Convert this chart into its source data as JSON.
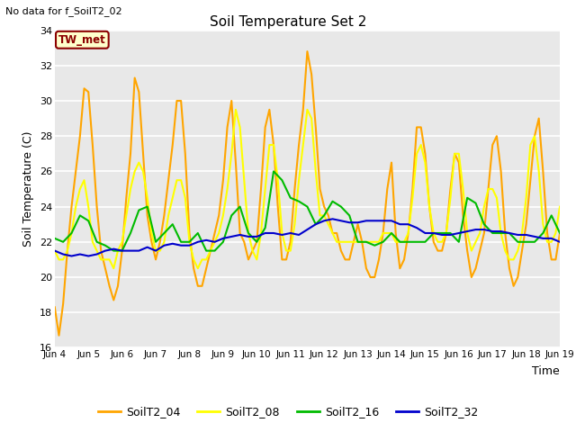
{
  "title": "Soil Temperature Set 2",
  "no_data_text": "No data for f_SoilT2_02",
  "xlabel": "Time",
  "ylabel": "Soil Temperature (C)",
  "ylim": [
    16,
    34
  ],
  "xlim": [
    0,
    15
  ],
  "bg_color": "#e8e8e8",
  "grid_color": "#ffffff",
  "legend_labels": [
    "SoilT2_04",
    "SoilT2_08",
    "SoilT2_16",
    "SoilT2_32"
  ],
  "legend_colors": [
    "#FFA500",
    "#FFFF00",
    "#00BB00",
    "#0000CC"
  ],
  "tw_met_label": "TW_met",
  "tw_met_bg": "#FFFFCC",
  "tw_met_border": "#8B0000",
  "tw_met_text_color": "#8B0000",
  "xtick_labels": [
    "Jun 4",
    "Jun 5",
    "Jun 6",
    "Jun 7",
    "Jun 8",
    "Jun 9",
    "Jun 10",
    "Jun 11",
    "Jun 12",
    "Jun 13",
    "Jun 14",
    "Jun 15",
    "Jun 16",
    "Jun 17",
    "Jun 18",
    "Jun 19"
  ],
  "xtick_positions": [
    0,
    1,
    2,
    3,
    4,
    5,
    6,
    7,
    8,
    9,
    10,
    11,
    12,
    13,
    14,
    15
  ],
  "ytick_positions": [
    16,
    18,
    20,
    22,
    24,
    26,
    28,
    30,
    32,
    34
  ],
  "soilT2_04_x": [
    0.0,
    0.125,
    0.25,
    0.375,
    0.5,
    0.625,
    0.75,
    0.875,
    1.0,
    1.125,
    1.25,
    1.375,
    1.5,
    1.625,
    1.75,
    1.875,
    2.0,
    2.125,
    2.25,
    2.375,
    2.5,
    2.625,
    2.75,
    2.875,
    3.0,
    3.125,
    3.25,
    3.375,
    3.5,
    3.625,
    3.75,
    3.875,
    4.0,
    4.125,
    4.25,
    4.375,
    4.5,
    4.625,
    4.75,
    4.875,
    5.0,
    5.125,
    5.25,
    5.375,
    5.5,
    5.625,
    5.75,
    5.875,
    6.0,
    6.125,
    6.25,
    6.375,
    6.5,
    6.625,
    6.75,
    6.875,
    7.0,
    7.125,
    7.25,
    7.375,
    7.5,
    7.625,
    7.75,
    7.875,
    8.0,
    8.125,
    8.25,
    8.375,
    8.5,
    8.625,
    8.75,
    8.875,
    9.0,
    9.125,
    9.25,
    9.375,
    9.5,
    9.625,
    9.75,
    9.875,
    10.0,
    10.125,
    10.25,
    10.375,
    10.5,
    10.625,
    10.75,
    10.875,
    11.0,
    11.125,
    11.25,
    11.375,
    11.5,
    11.625,
    11.75,
    11.875,
    12.0,
    12.125,
    12.25,
    12.375,
    12.5,
    12.625,
    12.75,
    12.875,
    13.0,
    13.125,
    13.25,
    13.375,
    13.5,
    13.625,
    13.75,
    13.875,
    14.0,
    14.125,
    14.25,
    14.375,
    14.5,
    14.625,
    14.75,
    14.875,
    15.0
  ],
  "soilT2_04_y": [
    18.3,
    16.7,
    18.5,
    21.5,
    24.0,
    26.0,
    28.0,
    30.7,
    30.5,
    27.5,
    24.0,
    21.5,
    20.5,
    19.5,
    18.7,
    19.5,
    21.5,
    24.5,
    27.0,
    31.3,
    30.5,
    27.0,
    23.5,
    22.0,
    21.0,
    22.0,
    23.5,
    25.5,
    27.5,
    30.0,
    30.0,
    27.0,
    22.5,
    20.5,
    19.5,
    19.5,
    20.5,
    21.5,
    22.5,
    23.5,
    25.5,
    28.5,
    30.0,
    26.5,
    22.5,
    22.0,
    21.0,
    21.5,
    22.0,
    25.0,
    28.5,
    29.5,
    27.5,
    24.0,
    21.0,
    21.0,
    22.0,
    25.0,
    27.5,
    29.5,
    32.8,
    31.5,
    28.5,
    25.0,
    24.0,
    23.5,
    22.5,
    22.5,
    21.5,
    21.0,
    21.0,
    22.0,
    23.0,
    22.0,
    20.5,
    20.0,
    20.0,
    21.0,
    22.5,
    25.0,
    26.5,
    22.5,
    20.5,
    21.0,
    22.5,
    25.0,
    28.5,
    28.5,
    27.0,
    24.0,
    22.0,
    21.5,
    21.5,
    22.5,
    25.0,
    27.0,
    26.5,
    23.5,
    21.5,
    20.0,
    20.5,
    21.5,
    22.5,
    25.0,
    27.5,
    28.0,
    26.0,
    22.5,
    20.5,
    19.5,
    20.0,
    21.5,
    23.0,
    25.5,
    28.0,
    29.0,
    26.0,
    22.5,
    21.0,
    21.0,
    22.5
  ],
  "soilT2_08_x": [
    0.0,
    0.125,
    0.25,
    0.375,
    0.5,
    0.625,
    0.75,
    0.875,
    1.0,
    1.125,
    1.25,
    1.375,
    1.5,
    1.625,
    1.75,
    1.875,
    2.0,
    2.125,
    2.25,
    2.375,
    2.5,
    2.625,
    2.75,
    2.875,
    3.0,
    3.125,
    3.25,
    3.375,
    3.5,
    3.625,
    3.75,
    3.875,
    4.0,
    4.125,
    4.25,
    4.375,
    4.5,
    4.625,
    4.75,
    4.875,
    5.0,
    5.125,
    5.25,
    5.375,
    5.5,
    5.625,
    5.75,
    5.875,
    6.0,
    6.125,
    6.25,
    6.375,
    6.5,
    6.625,
    6.75,
    6.875,
    7.0,
    7.125,
    7.25,
    7.375,
    7.5,
    7.625,
    7.75,
    7.875,
    8.0,
    8.125,
    8.25,
    8.375,
    8.5,
    8.625,
    8.75,
    8.875,
    9.0,
    9.125,
    9.25,
    9.375,
    9.5,
    9.625,
    9.75,
    9.875,
    10.0,
    10.125,
    10.25,
    10.375,
    10.5,
    10.625,
    10.75,
    10.875,
    11.0,
    11.125,
    11.25,
    11.375,
    11.5,
    11.625,
    11.75,
    11.875,
    12.0,
    12.125,
    12.25,
    12.375,
    12.5,
    12.625,
    12.75,
    12.875,
    13.0,
    13.125,
    13.25,
    13.375,
    13.5,
    13.625,
    13.75,
    13.875,
    14.0,
    14.125,
    14.25,
    14.375,
    14.5,
    14.625,
    14.75,
    14.875,
    15.0
  ],
  "soilT2_08_y": [
    21.5,
    21.0,
    21.0,
    21.5,
    22.5,
    24.0,
    25.0,
    25.5,
    24.0,
    22.0,
    21.5,
    21.0,
    21.0,
    21.0,
    20.5,
    21.5,
    22.0,
    23.5,
    25.0,
    26.0,
    26.5,
    26.0,
    24.5,
    22.5,
    21.5,
    21.5,
    22.0,
    23.5,
    24.5,
    25.5,
    25.5,
    24.5,
    22.0,
    21.0,
    20.5,
    21.0,
    21.0,
    21.5,
    22.0,
    22.5,
    23.5,
    25.0,
    27.0,
    29.5,
    28.5,
    25.5,
    22.5,
    21.5,
    21.0,
    22.5,
    25.0,
    27.5,
    27.5,
    25.5,
    22.5,
    21.5,
    21.5,
    23.0,
    25.5,
    27.5,
    29.5,
    29.0,
    26.0,
    23.5,
    23.5,
    23.0,
    22.5,
    22.0,
    22.0,
    22.0,
    22.0,
    22.0,
    22.0,
    22.0,
    22.0,
    22.0,
    22.0,
    22.0,
    22.5,
    22.5,
    22.5,
    22.0,
    22.0,
    22.0,
    22.5,
    24.5,
    27.0,
    27.5,
    26.5,
    24.0,
    22.5,
    22.0,
    22.0,
    22.5,
    24.5,
    27.0,
    27.0,
    25.0,
    22.5,
    21.5,
    22.0,
    22.5,
    24.0,
    25.0,
    25.0,
    24.5,
    22.5,
    21.5,
    21.0,
    21.0,
    21.5,
    22.5,
    24.5,
    27.5,
    28.0,
    26.0,
    23.0,
    22.0,
    22.0,
    22.5,
    24.0
  ],
  "soilT2_16_x": [
    0.0,
    0.25,
    0.5,
    0.75,
    1.0,
    1.25,
    1.5,
    1.75,
    2.0,
    2.25,
    2.5,
    2.75,
    3.0,
    3.25,
    3.5,
    3.75,
    4.0,
    4.25,
    4.5,
    4.75,
    5.0,
    5.25,
    5.5,
    5.75,
    6.0,
    6.25,
    6.5,
    6.75,
    7.0,
    7.25,
    7.5,
    7.75,
    8.0,
    8.25,
    8.5,
    8.75,
    9.0,
    9.25,
    9.5,
    9.75,
    10.0,
    10.25,
    10.5,
    10.75,
    11.0,
    11.25,
    11.5,
    11.75,
    12.0,
    12.25,
    12.5,
    12.75,
    13.0,
    13.25,
    13.5,
    13.75,
    14.0,
    14.25,
    14.5,
    14.75,
    15.0
  ],
  "soilT2_16_y": [
    22.2,
    22.0,
    22.5,
    23.5,
    23.2,
    22.0,
    21.8,
    21.5,
    21.5,
    22.5,
    23.8,
    24.0,
    22.0,
    22.5,
    23.0,
    22.0,
    22.0,
    22.5,
    21.5,
    21.5,
    22.0,
    23.5,
    24.0,
    22.5,
    22.0,
    22.8,
    26.0,
    25.5,
    24.5,
    24.3,
    24.0,
    23.0,
    23.5,
    24.3,
    24.0,
    23.5,
    22.0,
    22.0,
    21.8,
    22.0,
    22.5,
    22.0,
    22.0,
    22.0,
    22.0,
    22.5,
    22.5,
    22.5,
    22.0,
    24.5,
    24.2,
    23.0,
    22.5,
    22.5,
    22.5,
    22.0,
    22.0,
    22.0,
    22.5,
    23.5,
    22.5
  ],
  "soilT2_32_x": [
    0.0,
    0.25,
    0.5,
    0.75,
    1.0,
    1.25,
    1.5,
    1.75,
    2.0,
    2.25,
    2.5,
    2.75,
    3.0,
    3.25,
    3.5,
    3.75,
    4.0,
    4.25,
    4.5,
    4.75,
    5.0,
    5.25,
    5.5,
    5.75,
    6.0,
    6.25,
    6.5,
    6.75,
    7.0,
    7.25,
    7.5,
    7.75,
    8.0,
    8.25,
    8.5,
    8.75,
    9.0,
    9.25,
    9.5,
    9.75,
    10.0,
    10.25,
    10.5,
    10.75,
    11.0,
    11.25,
    11.5,
    11.75,
    12.0,
    12.25,
    12.5,
    12.75,
    13.0,
    13.25,
    13.5,
    13.75,
    14.0,
    14.25,
    14.5,
    14.75,
    15.0
  ],
  "soilT2_32_y": [
    21.5,
    21.3,
    21.2,
    21.3,
    21.2,
    21.3,
    21.5,
    21.6,
    21.5,
    21.5,
    21.5,
    21.7,
    21.5,
    21.8,
    21.9,
    21.8,
    21.8,
    22.0,
    22.1,
    22.0,
    22.2,
    22.3,
    22.4,
    22.3,
    22.3,
    22.5,
    22.5,
    22.4,
    22.5,
    22.4,
    22.7,
    23.0,
    23.2,
    23.3,
    23.2,
    23.1,
    23.1,
    23.2,
    23.2,
    23.2,
    23.2,
    23.0,
    23.0,
    22.8,
    22.5,
    22.5,
    22.4,
    22.4,
    22.5,
    22.6,
    22.7,
    22.7,
    22.6,
    22.6,
    22.5,
    22.4,
    22.4,
    22.3,
    22.2,
    22.2,
    22.0
  ]
}
